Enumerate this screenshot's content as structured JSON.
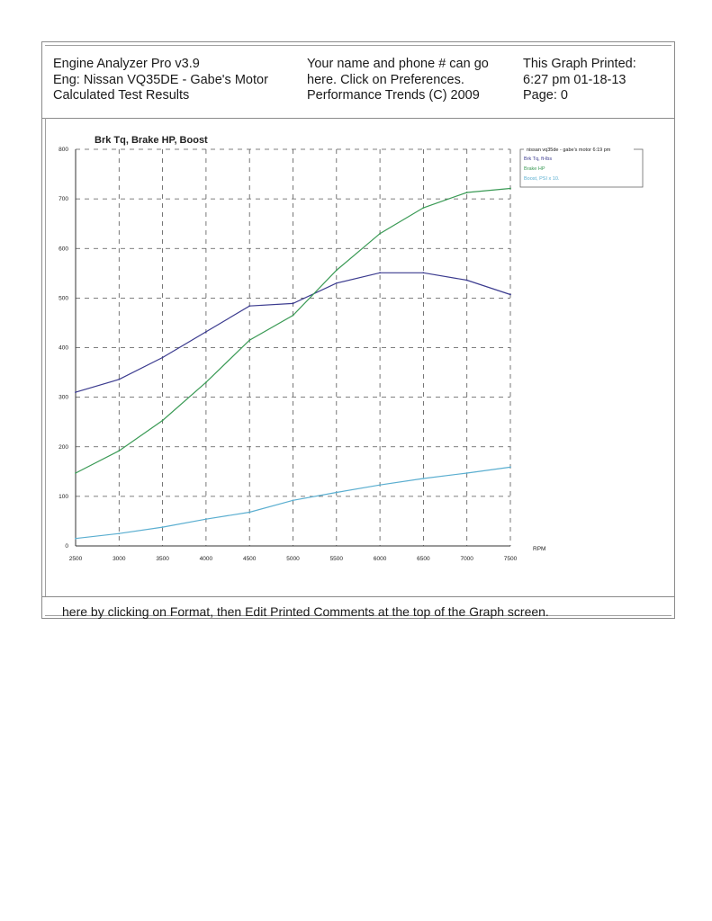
{
  "header": {
    "col1": [
      "Engine Analyzer Pro v3.9",
      "Eng: Nissan VQ35DE - Gabe's Motor",
      "Calculated Test Results"
    ],
    "col2": [
      "Your name and phone # can go",
      "here.  Click on Preferences.",
      "Performance Trends (C) 2009"
    ],
    "col3": [
      "This Graph Printed:",
      "6:27 pm 01-18-13",
      "Page: 0"
    ]
  },
  "footer": {
    "text": "here by clicking on Format, then Edit Printed Comments at the top of the Graph screen."
  },
  "colors": {
    "torque": "#3b3b8f",
    "hp": "#3a9a55",
    "boost": "#5aaed0",
    "grid": "#555555"
  },
  "chart_data": {
    "type": "line",
    "title": "Brk Tq, Brake HP, Boost",
    "xlabel": "RPM",
    "ylabel": "",
    "x": [
      2500,
      3000,
      3500,
      4000,
      4500,
      5000,
      5500,
      6000,
      6500,
      7000,
      7500
    ],
    "xlim": [
      2500,
      7500
    ],
    "ylim": [
      0,
      800
    ],
    "x_ticks": [
      2500,
      3000,
      3500,
      4000,
      4500,
      5000,
      5500,
      6000,
      6500,
      7000,
      7500
    ],
    "y_ticks": [
      0,
      100,
      200,
      300,
      400,
      500,
      600,
      700,
      800
    ],
    "grid": true,
    "legend_title": "nissan vq35de - gabe's motor 6:19 pm",
    "legend_position": "top-right",
    "series": [
      {
        "name": "Brk Tq, ft-lbs",
        "color": "#3b3b8f",
        "values": [
          310,
          336,
          380,
          432,
          484,
          489,
          530,
          551,
          551,
          536,
          507
        ]
      },
      {
        "name": "Brake HP",
        "color": "#3a9a55",
        "values": [
          147,
          192,
          253,
          330,
          415,
          465,
          556,
          630,
          682,
          713,
          721
        ]
      },
      {
        "name": "Boost, PSI x 10.",
        "color": "#5aaed0",
        "values": [
          15,
          25,
          38,
          54,
          68,
          92,
          108,
          123,
          136,
          147,
          159
        ]
      }
    ]
  }
}
